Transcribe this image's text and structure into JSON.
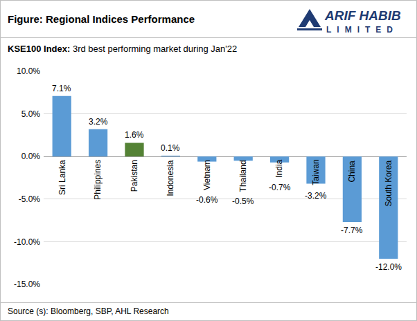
{
  "chart_data": {
    "type": "bar",
    "title": "Figure: Regional Indices Performance",
    "subtitle": "KSE100 Index: 3rd best performing market during Jan'22",
    "source": "Source (s): Bloomberg, SBP, AHL Research",
    "logo": [
      "ARIF HABIB",
      "LIMITED"
    ],
    "categories": [
      "Sri Lanka",
      "Philippines",
      "Pakistan",
      "Indonesia",
      "Vietnam",
      "Thailand",
      "India",
      "Taiwan",
      "China",
      "South Korea"
    ],
    "values": [
      7.1,
      3.2,
      1.6,
      0.1,
      -0.6,
      -0.5,
      -0.7,
      -3.2,
      -7.7,
      -12.0
    ],
    "value_labels": [
      "7.1%",
      "3.2%",
      "1.6%",
      "0.1%",
      "-0.6%",
      "-0.5%",
      "-0.7%",
      "-3.2%",
      "-7.7%",
      "-12.0%"
    ],
    "colors": [
      "#5b9bd5",
      "#5b9bd5",
      "#548235",
      "#5b9bd5",
      "#5b9bd5",
      "#5b9bd5",
      "#5b9bd5",
      "#5b9bd5",
      "#5b9bd5",
      "#5b9bd5"
    ],
    "ylim": [
      -15,
      10
    ],
    "yticks": [
      {
        "value": -15,
        "label": "-15.0%"
      },
      {
        "value": -10,
        "label": "-10.0%"
      },
      {
        "value": -5,
        "label": "-5.0%"
      },
      {
        "value": 0,
        "label": "0.0%"
      },
      {
        "value": 5,
        "label": "5.0%"
      },
      {
        "value": 10,
        "label": "10.0%"
      }
    ],
    "grid": true,
    "data_labels": true
  }
}
